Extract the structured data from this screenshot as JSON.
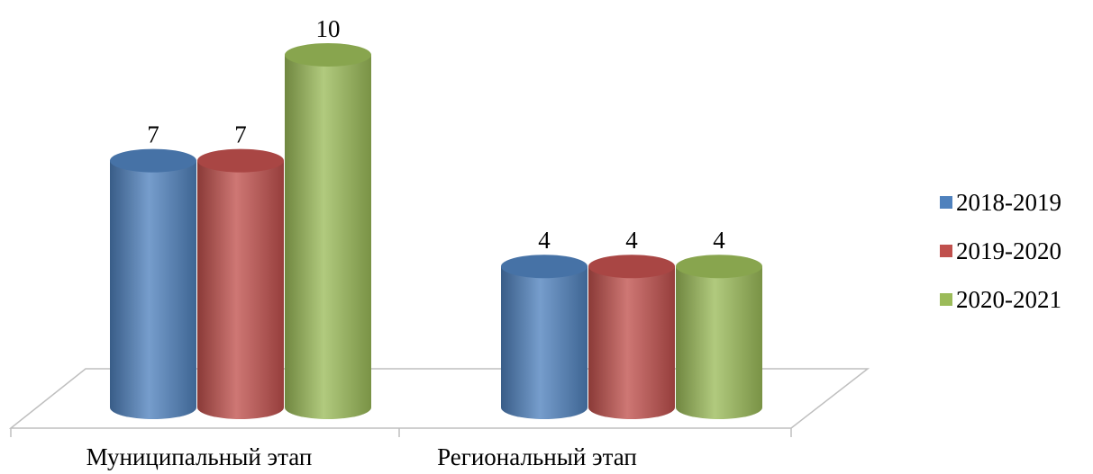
{
  "chart_data": {
    "type": "bar",
    "categories": [
      "Муниципальный этап",
      "Региональный этап"
    ],
    "series": [
      {
        "name": "2018-2019",
        "values": [
          7,
          4
        ],
        "color": "#4F81BD"
      },
      {
        "name": "2019-2020",
        "values": [
          7,
          4
        ],
        "color": "#C0504D"
      },
      {
        "name": "2020-2021",
        "values": [
          10,
          4
        ],
        "color": "#9BBB59"
      }
    ],
    "ylim": [
      0,
      10
    ],
    "grid": false,
    "legend": "right",
    "data_labels": true
  }
}
